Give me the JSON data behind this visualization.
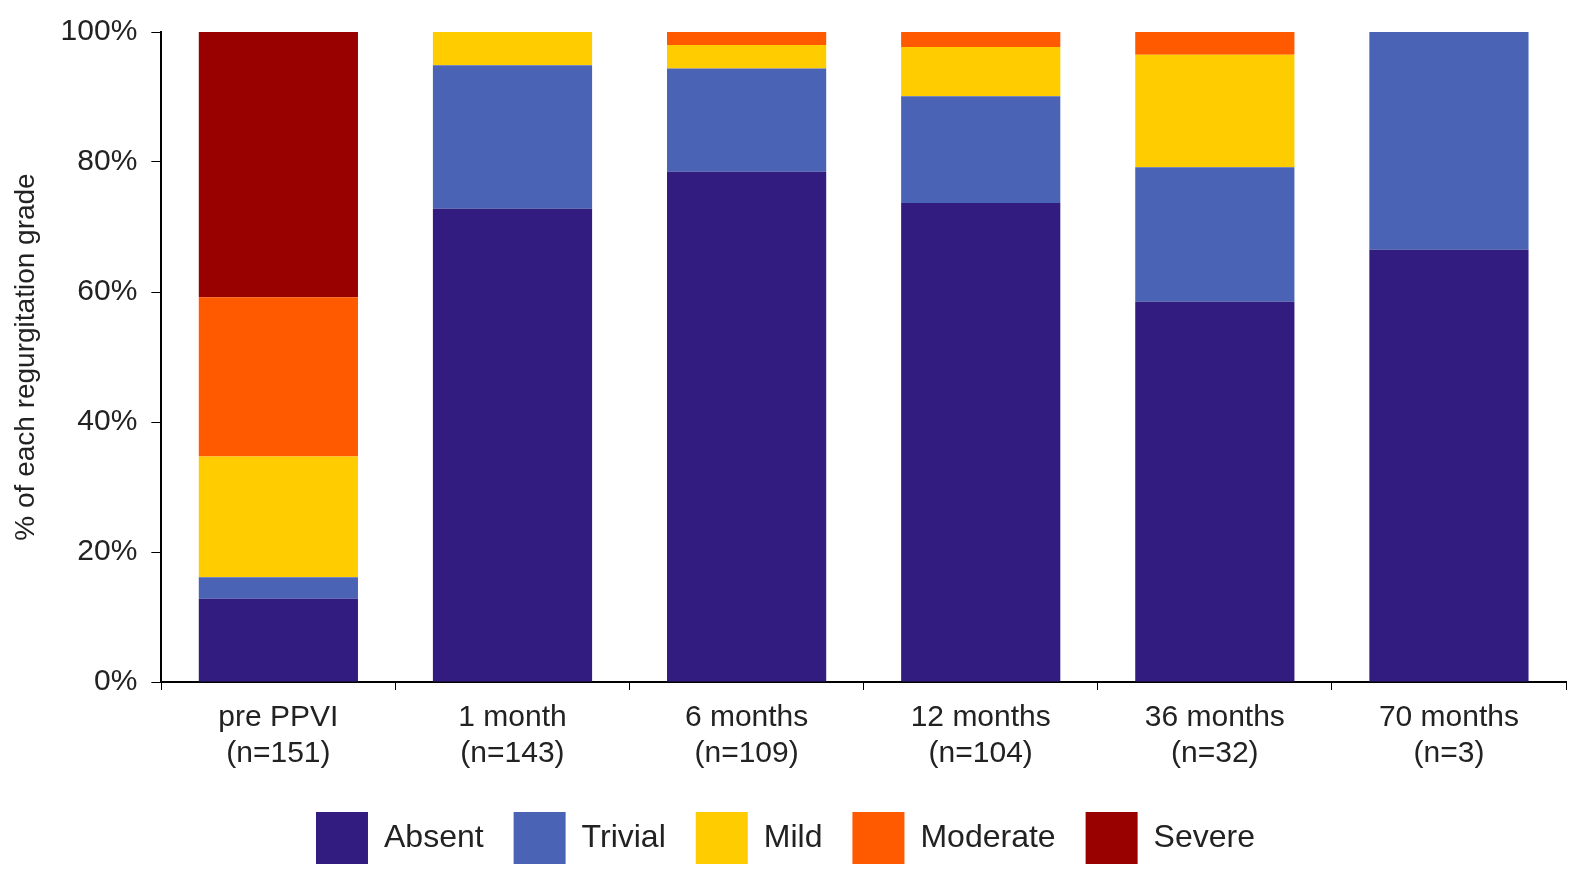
{
  "chart_data": {
    "type": "bar",
    "stacked": true,
    "ylabel": "% of each regurgitation grade",
    "categories": [
      "pre PPVI\n(n=151)",
      "1 month\n(n=143)",
      "6 months\n(n=109)",
      "12 months\n(n=104)",
      "36 months\n(n=32)",
      "70 months\n(n=3)"
    ],
    "series": [
      {
        "name": "Absent",
        "color": "#331c80",
        "values": [
          12.8,
          72.8,
          78.5,
          73.7,
          58.5,
          66.5
        ]
      },
      {
        "name": "Trivial",
        "color": "#4a63b4",
        "values": [
          3.3,
          22.1,
          15.9,
          16.4,
          20.7,
          33.5
        ]
      },
      {
        "name": "Mild",
        "color": "#ffcc00",
        "values": [
          18.6,
          5.1,
          3.6,
          7.6,
          17.3,
          null
        ]
      },
      {
        "name": "Moderate",
        "color": "#ff5a00",
        "values": [
          24.5,
          null,
          2.0,
          2.3,
          3.5,
          null
        ]
      },
      {
        "name": "Severe",
        "color": "#990000",
        "values": [
          40.8,
          null,
          null,
          null,
          null,
          null
        ]
      }
    ],
    "ylim": [
      0,
      100
    ],
    "yticks": [
      {
        "value": 0,
        "label": "0%"
      },
      {
        "value": 20,
        "label": "20%"
      },
      {
        "value": 40,
        "label": "40%"
      },
      {
        "value": 60,
        "label": "60%"
      },
      {
        "value": 80,
        "label": "80%"
      },
      {
        "value": 100,
        "label": "100%"
      }
    ],
    "grid": false,
    "legend": "bottom"
  }
}
